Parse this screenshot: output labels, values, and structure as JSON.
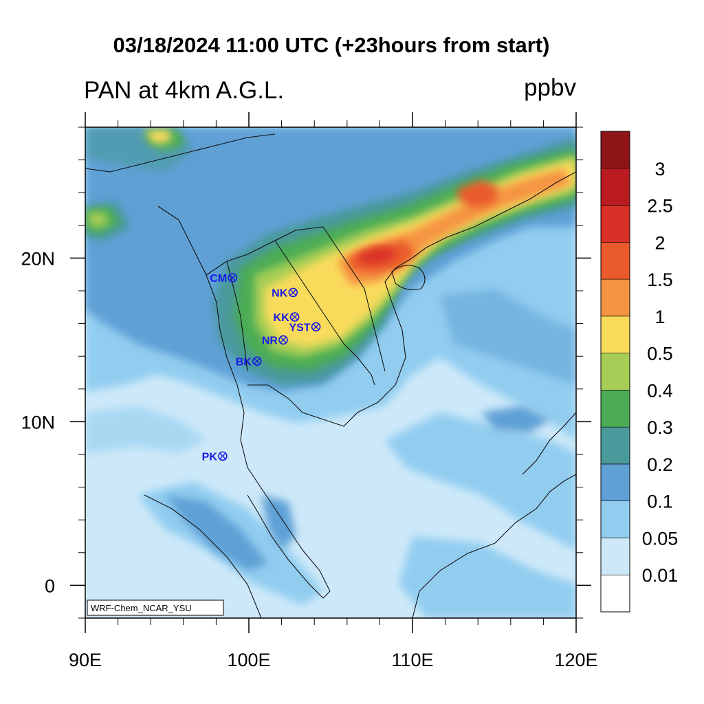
{
  "title": "03/18/2024 11:00 UTC (+23hours from start)",
  "subtitle": "PAN at 4km A.G.L.",
  "units": "ppbv",
  "credit": "WRF-Chem_NCAR_YSU",
  "map": {
    "lon_range": [
      90,
      120
    ],
    "lat_range": [
      -2,
      28
    ],
    "x_ticks": [
      {
        "value": 90,
        "label": "90E"
      },
      {
        "value": 100,
        "label": "100E"
      },
      {
        "value": 110,
        "label": "110E"
      },
      {
        "value": 120,
        "label": "120E"
      }
    ],
    "y_ticks": [
      {
        "value": 0,
        "label": "0"
      },
      {
        "value": 10,
        "label": "10N"
      },
      {
        "value": 20,
        "label": "20N"
      }
    ]
  },
  "colorbar": {
    "colors": [
      "#ffffff",
      "#cde9f9",
      "#92cdf0",
      "#5fa0d5",
      "#4a9a9b",
      "#4bac55",
      "#a6cd55",
      "#f9db5b",
      "#f59443",
      "#ea5a2a",
      "#d93127",
      "#b91b20",
      "#8e1418"
    ],
    "labels": [
      "0.01",
      "0.05",
      "0.1",
      "0.2",
      "0.3",
      "0.4",
      "0.5",
      "1",
      "1.5",
      "2",
      "2.5",
      "3"
    ]
  },
  "stations": [
    {
      "name": "CM",
      "lon": 99.0,
      "lat": 18.8
    },
    {
      "name": "NK",
      "lon": 102.7,
      "lat": 17.9
    },
    {
      "name": "KK",
      "lon": 102.8,
      "lat": 16.4
    },
    {
      "name": "YST",
      "lon": 104.1,
      "lat": 15.8
    },
    {
      "name": "NR",
      "lon": 102.1,
      "lat": 15.0
    },
    {
      "name": "BK",
      "lon": 100.5,
      "lat": 13.7
    },
    {
      "name": "PK",
      "lon": 98.4,
      "lat": 7.9
    }
  ]
}
